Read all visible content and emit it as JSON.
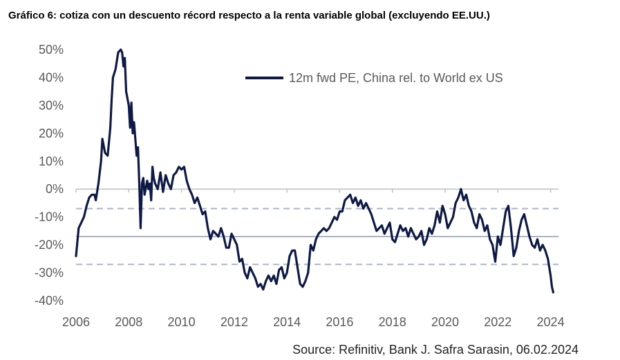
{
  "title": "Gráfico 6: cotiza con un descuento récord respecto a la renta variable global (excluyendo EE.UU.)",
  "source": "Source: Refinitiv, Bank J. Safra Sarasin, 06.02.2024",
  "chart_data": {
    "type": "line",
    "title": "Gráfico 6: cotiza con un descuento récord respecto a la renta variable global (excluyendo EE.UU.)",
    "xlabel": "",
    "ylabel": "",
    "xlim": [
      2006,
      2024.3
    ],
    "ylim": [
      -40,
      50
    ],
    "x_ticks": [
      "2006",
      "2008",
      "2010",
      "2012",
      "2014",
      "2016",
      "2018",
      "2020",
      "2022",
      "2024"
    ],
    "y_ticks": [
      "50%",
      "40%",
      "30%",
      "20%",
      "10%",
      "0%",
      "-10%",
      "-20%",
      "-30%",
      "-40%"
    ],
    "grid": false,
    "legend_position": "top-right",
    "colors": {
      "series": "#0e1a45",
      "mean_line": "#aab3cc",
      "band_line": "#aab3cc",
      "axis": "#bfbfbf"
    },
    "reference_lines": [
      {
        "kind": "mean",
        "value": -17,
        "style": "solid"
      },
      {
        "kind": "+1sd",
        "value": -7,
        "style": "dashed"
      },
      {
        "kind": "-1sd",
        "value": -27,
        "style": "dashed"
      }
    ],
    "series": [
      {
        "name": "12m fwd PE, China rel. to World ex US",
        "x": [
          2006.0,
          2006.1,
          2006.2,
          2006.3,
          2006.4,
          2006.5,
          2006.6,
          2006.7,
          2006.75,
          2006.8,
          2006.85,
          2006.9,
          2006.95,
          2007.0,
          2007.1,
          2007.2,
          2007.3,
          2007.35,
          2007.4,
          2007.5,
          2007.6,
          2007.7,
          2007.75,
          2007.8,
          2007.85,
          2007.9,
          2008.0,
          2008.05,
          2008.1,
          2008.15,
          2008.2,
          2008.3,
          2008.35,
          2008.4,
          2008.45,
          2008.5,
          2008.55,
          2008.6,
          2008.7,
          2008.75,
          2008.8,
          2008.85,
          2008.9,
          2008.95,
          2009.0,
          2009.1,
          2009.2,
          2009.3,
          2009.4,
          2009.5,
          2009.6,
          2009.7,
          2009.8,
          2009.9,
          2010.0,
          2010.1,
          2010.2,
          2010.3,
          2010.4,
          2010.5,
          2010.6,
          2010.7,
          2010.8,
          2010.9,
          2011.0,
          2011.1,
          2011.2,
          2011.3,
          2011.4,
          2011.5,
          2011.6,
          2011.7,
          2011.8,
          2011.9,
          2012.0,
          2012.1,
          2012.2,
          2012.3,
          2012.4,
          2012.5,
          2012.6,
          2012.7,
          2012.8,
          2012.9,
          2013.0,
          2013.1,
          2013.2,
          2013.3,
          2013.4,
          2013.5,
          2013.6,
          2013.7,
          2013.8,
          2013.9,
          2014.0,
          2014.1,
          2014.2,
          2014.3,
          2014.4,
          2014.5,
          2014.6,
          2014.7,
          2014.8,
          2014.9,
          2015.0,
          2015.1,
          2015.2,
          2015.3,
          2015.4,
          2015.5,
          2015.6,
          2015.7,
          2015.8,
          2015.9,
          2016.0,
          2016.1,
          2016.2,
          2016.3,
          2016.4,
          2016.5,
          2016.6,
          2016.7,
          2016.8,
          2016.9,
          2017.0,
          2017.1,
          2017.2,
          2017.3,
          2017.4,
          2017.5,
          2017.6,
          2017.7,
          2017.8,
          2017.9,
          2018.0,
          2018.1,
          2018.2,
          2018.3,
          2018.4,
          2018.5,
          2018.6,
          2018.7,
          2018.8,
          2018.9,
          2019.0,
          2019.1,
          2019.2,
          2019.3,
          2019.4,
          2019.5,
          2019.6,
          2019.7,
          2019.8,
          2019.9,
          2020.0,
          2020.1,
          2020.2,
          2020.3,
          2020.4,
          2020.5,
          2020.6,
          2020.7,
          2020.8,
          2020.9,
          2021.0,
          2021.1,
          2021.2,
          2021.3,
          2021.4,
          2021.5,
          2021.6,
          2021.7,
          2021.8,
          2021.9,
          2022.0,
          2022.1,
          2022.2,
          2022.3,
          2022.4,
          2022.5,
          2022.6,
          2022.7,
          2022.8,
          2022.9,
          2023.0,
          2023.1,
          2023.2,
          2023.3,
          2023.4,
          2023.5,
          2023.6,
          2023.7,
          2023.8,
          2023.9,
          2024.0,
          2024.05,
          2024.1
        ],
        "values": [
          -24,
          -14,
          -12,
          -10,
          -6,
          -3,
          -2,
          -2,
          -4,
          -1,
          2,
          6,
          10,
          18,
          13,
          12,
          22,
          32,
          40,
          43,
          49,
          50,
          49,
          44,
          47,
          35,
          30,
          22,
          31,
          20,
          24,
          12,
          15,
          2,
          -14,
          2,
          4,
          -2,
          3,
          0,
          2,
          -4,
          8,
          4,
          2,
          0,
          6,
          -1,
          5,
          2,
          0,
          5,
          6,
          8,
          7,
          8,
          3,
          0,
          -2,
          -5,
          -3,
          -6,
          -9,
          -8,
          -14,
          -18,
          -15,
          -16,
          -17,
          -14,
          -17,
          -21,
          -21,
          -16,
          -18,
          -20,
          -26,
          -25,
          -30,
          -32,
          -28,
          -30,
          -32,
          -35,
          -34,
          -36,
          -33,
          -31,
          -33,
          -31,
          -34,
          -29,
          -28,
          -32,
          -30,
          -24,
          -22,
          -22,
          -28,
          -34,
          -35,
          -33,
          -30,
          -20,
          -22,
          -18,
          -16,
          -15,
          -14,
          -15,
          -14,
          -12,
          -10,
          -11,
          -8,
          -8,
          -4,
          -3,
          -2,
          -5,
          -3,
          -6,
          -4,
          -7,
          -5,
          -7,
          -9,
          -12,
          -15,
          -14,
          -13,
          -16,
          -14,
          -12,
          -18,
          -19,
          -16,
          -13,
          -15,
          -14,
          -17,
          -14,
          -16,
          -18,
          -17,
          -15,
          -20,
          -18,
          -14,
          -16,
          -13,
          -8,
          -12,
          -6,
          -9,
          -14,
          -12,
          -10,
          -5,
          -3,
          0,
          -4,
          -2,
          -6,
          -8,
          -12,
          -14,
          -9,
          -11,
          -15,
          -13,
          -18,
          -20,
          -26,
          -17,
          -20,
          -14,
          -8,
          -6,
          -14,
          -24,
          -21,
          -15,
          -11,
          -9,
          -13,
          -17,
          -20,
          -21,
          -18,
          -22,
          -20,
          -22,
          -25,
          -31,
          -35,
          -37
        ]
      }
    ]
  }
}
